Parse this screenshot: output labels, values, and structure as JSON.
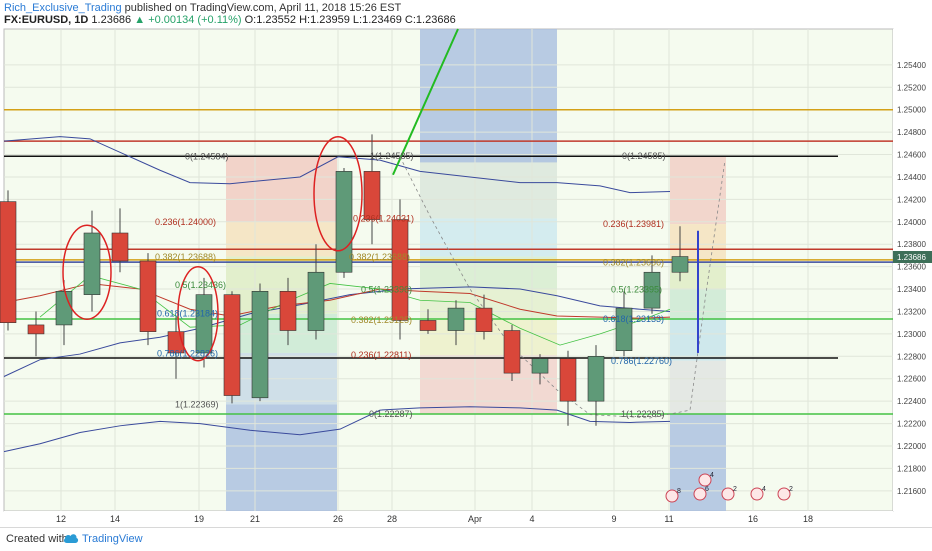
{
  "header": {
    "user": "Rich_Exclusive_Trading",
    "published_text": "published on TradingView.com, April 11, 2018 15:26 EST"
  },
  "symbol_bar": {
    "symbol": "FX:EURUSD, 1D",
    "last": "1.23686",
    "change": "+0.00134 (+0.11%)",
    "open_label": "O:",
    "open": "1.23552",
    "high_label": "H:",
    "high": "1.23959",
    "low_label": "L:",
    "low": "1.23469",
    "close_label": "C:",
    "close": "1.23686"
  },
  "footer": {
    "created_with": "Created with",
    "brand": "TradingView"
  },
  "colors": {
    "up": "#5f9a78",
    "down": "#d9473a",
    "bb": "#3a4a9c",
    "ma_red": "#c0392b",
    "green_line": "#44c244",
    "black_line": "#111111",
    "gold_line": "#d4a017"
  },
  "chart_data": {
    "type": "candlestick",
    "symbol": "FX:EURUSD",
    "interval": "1D",
    "y_axis": {
      "range": [
        1.2142,
        1.2572
      ],
      "ticks": [
        "1.25400",
        "1.25200",
        "1.25000",
        "1.24800",
        "1.24600",
        "1.24400",
        "1.24200",
        "1.24000",
        "1.23800",
        "1.23600",
        "1.23400",
        "1.23200",
        "1.23000",
        "1.22800",
        "1.22600",
        "1.22400",
        "1.22200",
        "1.22000",
        "1.21800",
        "1.21600"
      ],
      "last_price": "1.23686"
    },
    "x_axis": {
      "ticks": [
        "12",
        "14",
        "19",
        "21",
        "26",
        "28",
        "Apr",
        "4",
        "9",
        "11",
        "16",
        "18"
      ]
    },
    "candles": [
      {
        "o": 1.2418,
        "h": 1.2428,
        "l": 1.2303,
        "c": 1.231
      },
      {
        "o": 1.2308,
        "h": 1.232,
        "l": 1.228,
        "c": 1.23
      },
      {
        "o": 1.2308,
        "h": 1.2348,
        "l": 1.229,
        "c": 1.2338
      },
      {
        "o": 1.2335,
        "h": 1.241,
        "l": 1.232,
        "c": 1.239
      },
      {
        "o": 1.239,
        "h": 1.2412,
        "l": 1.2355,
        "c": 1.2365
      },
      {
        "o": 1.2365,
        "h": 1.2372,
        "l": 1.229,
        "c": 1.2302
      },
      {
        "o": 1.2302,
        "h": 1.2315,
        "l": 1.226,
        "c": 1.2283
      },
      {
        "o": 1.2283,
        "h": 1.235,
        "l": 1.227,
        "c": 1.2335
      },
      {
        "o": 1.2335,
        "h": 1.2338,
        "l": 1.2238,
        "c": 1.2245
      },
      {
        "o": 1.2243,
        "h": 1.2345,
        "l": 1.224,
        "c": 1.2338
      },
      {
        "o": 1.2338,
        "h": 1.235,
        "l": 1.229,
        "c": 1.2303
      },
      {
        "o": 1.2303,
        "h": 1.238,
        "l": 1.2295,
        "c": 1.2355
      },
      {
        "o": 1.2355,
        "h": 1.2448,
        "l": 1.235,
        "c": 1.2445
      },
      {
        "o": 1.2445,
        "h": 1.2478,
        "l": 1.238,
        "c": 1.2402
      },
      {
        "o": 1.2402,
        "h": 1.242,
        "l": 1.2295,
        "c": 1.2312
      },
      {
        "o": 1.2312,
        "h": 1.2322,
        "l": 1.23,
        "c": 1.2303
      },
      {
        "o": 1.2303,
        "h": 1.233,
        "l": 1.229,
        "c": 1.2323
      },
      {
        "o": 1.2323,
        "h": 1.2335,
        "l": 1.2295,
        "c": 1.2302
      },
      {
        "o": 1.2303,
        "h": 1.2308,
        "l": 1.2258,
        "c": 1.2265
      },
      {
        "o": 1.2265,
        "h": 1.2282,
        "l": 1.2255,
        "c": 1.2278
      },
      {
        "o": 1.2278,
        "h": 1.2285,
        "l": 1.2218,
        "c": 1.224
      },
      {
        "o": 1.224,
        "h": 1.229,
        "l": 1.2218,
        "c": 1.228
      },
      {
        "o": 1.2285,
        "h": 1.2338,
        "l": 1.228,
        "c": 1.2323
      },
      {
        "o": 1.2323,
        "h": 1.237,
        "l": 1.2318,
        "c": 1.2355
      },
      {
        "o": 1.2355,
        "h": 1.2396,
        "l": 1.2347,
        "c": 1.2369
      }
    ],
    "horizontal_lines": [
      {
        "price": 1.25,
        "color": "gold_line"
      },
      {
        "price": 1.2472,
        "color": "ma_red"
      },
      {
        "price": 1.24585,
        "color": "black_line"
      },
      {
        "price": 1.23755,
        "color": "ma_red"
      },
      {
        "price": 1.2366,
        "color": "gold_line"
      },
      {
        "price": 1.2364,
        "color": "bb"
      },
      {
        "price": 1.23133,
        "color": "green_line"
      },
      {
        "price": 1.22785,
        "color": "black_line"
      },
      {
        "price": 1.22285,
        "color": "green_line"
      }
    ],
    "fib_labels": [
      {
        "text": "0(1.24584)",
        "price": 1.24584
      },
      {
        "text": "0.236(1.24000)",
        "price": 1.24
      },
      {
        "text": "0.382(1.23688)",
        "price": 1.23688
      },
      {
        "text": "0.5(1.23436)",
        "price": 1.23436
      },
      {
        "text": "0.618(1.23184)",
        "price": 1.23184
      },
      {
        "text": "0.786(1.22826)",
        "price": 1.22826
      },
      {
        "text": "1(1.22369)",
        "price": 1.22369
      },
      {
        "text": "1(1.24585)",
        "price": 1.24585
      },
      {
        "text": "0.236(1.24031)",
        "price": 1.24031
      },
      {
        "text": "0.382(1.23688)",
        "price": 1.23688
      },
      {
        "text": "0.5(1.23396)",
        "price": 1.23396
      },
      {
        "text": "0.382(1.23125)",
        "price": 1.23125
      },
      {
        "text": "0.236(1.22811)",
        "price": 1.22811
      },
      {
        "text": "0(1.22287)",
        "price": 1.22287
      },
      {
        "text": "0(1.24585)",
        "price": 1.24585
      },
      {
        "text": "0.236(1.23981)",
        "price": 1.23981
      },
      {
        "text": "0.382(1.23636)",
        "price": 1.23636
      },
      {
        "text": "0.5(1.23395)",
        "price": 1.23395
      },
      {
        "text": "0.618(1.23133)",
        "price": 1.23133
      },
      {
        "text": "0.786(1.22760)",
        "price": 1.2276
      },
      {
        "text": "1(1.22285)",
        "price": 1.22285
      }
    ],
    "event_markers": [
      "8",
      "6",
      "2",
      "4",
      "4",
      "2"
    ]
  }
}
